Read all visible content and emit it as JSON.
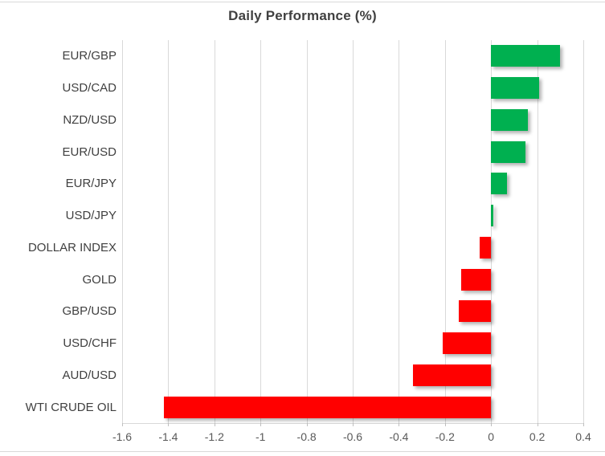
{
  "chart_data": {
    "type": "bar",
    "orientation": "horizontal",
    "title": "Daily Performance (%)",
    "categories": [
      "EUR/GBP",
      "USD/CAD",
      "NZD/USD",
      "EUR/USD",
      "EUR/JPY",
      "USD/JPY",
      "DOLLAR INDEX",
      "GOLD",
      "GBP/USD",
      "USD/CHF",
      "AUD/USD",
      "WTI CRUDE OIL"
    ],
    "values": [
      0.3,
      0.21,
      0.16,
      0.15,
      0.07,
      0.01,
      -0.05,
      -0.13,
      -0.14,
      -0.21,
      -0.34,
      -1.42
    ],
    "xlim": [
      -1.6,
      0.4
    ],
    "xtick_labels": [
      "-1.6",
      "-1.4",
      "-1.2",
      "-1",
      "-0.8",
      "-0.6",
      "-0.4",
      "-0.2",
      "0",
      "0.2",
      "0.4"
    ],
    "xtick_values": [
      -1.6,
      -1.4,
      -1.2,
      -1.0,
      -0.8,
      -0.6,
      -0.4,
      -0.2,
      0,
      0.2,
      0.4
    ],
    "grid": true,
    "legend": false,
    "positive_color": "#00B050",
    "negative_color": "#FF0000"
  }
}
